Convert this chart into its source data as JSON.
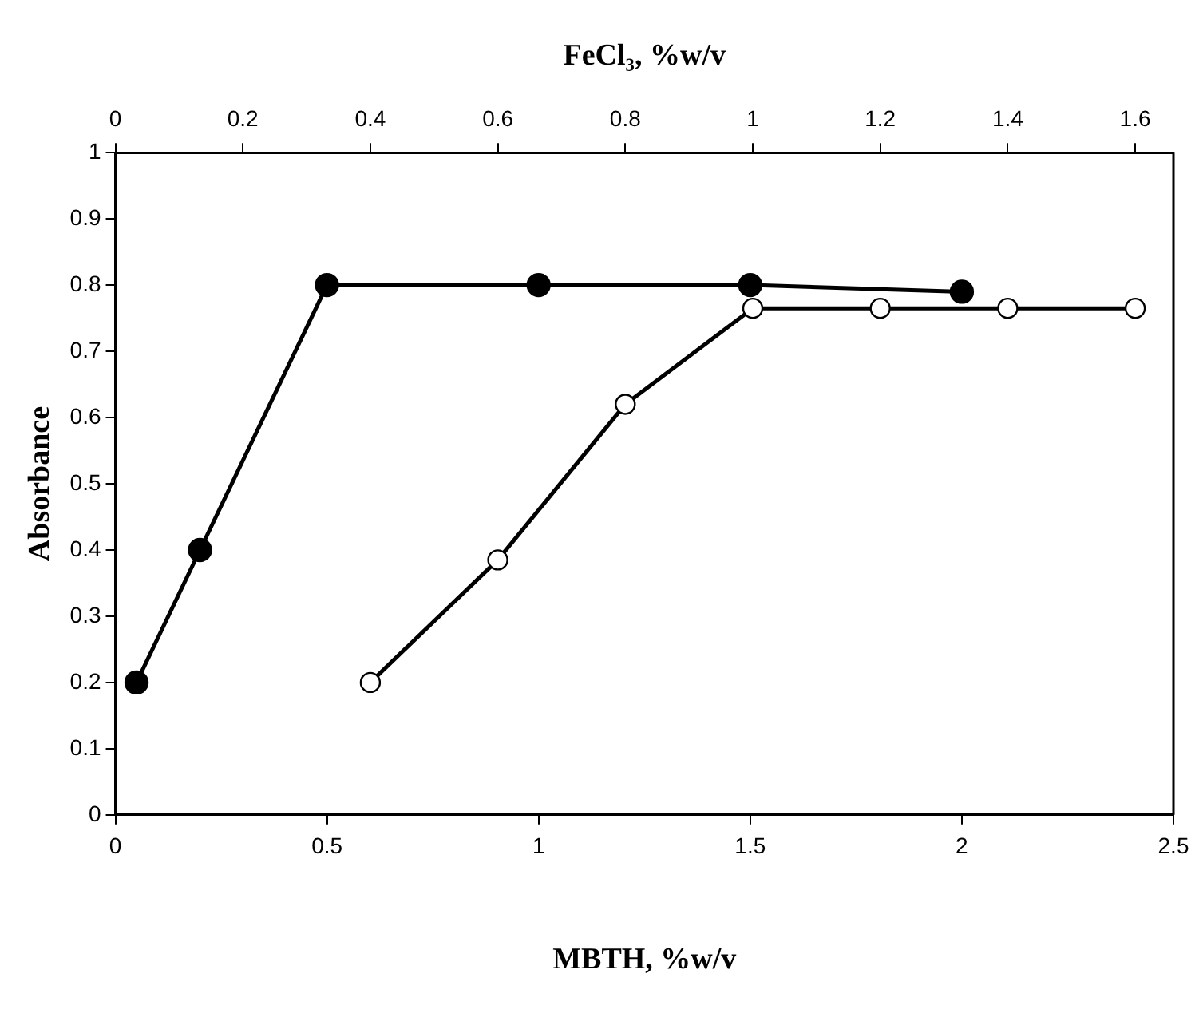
{
  "chart_data": {
    "type": "line",
    "xlabel": "MBTH, %w/v",
    "x2label": "FeCl₃, %w/v",
    "ylabel": "Absorbance",
    "xlim": [
      0,
      2.5
    ],
    "xticks": [
      0,
      0.5,
      1,
      1.5,
      2,
      2.5
    ],
    "x2lim": [
      0,
      1.66
    ],
    "x2ticks": [
      0,
      0.2,
      0.4,
      0.6,
      0.8,
      1,
      1.2,
      1.4,
      1.6
    ],
    "ylim": [
      0,
      1
    ],
    "yticks": [
      0,
      0.1,
      0.2,
      0.3,
      0.4,
      0.5,
      0.6,
      0.7,
      0.8,
      0.9,
      1
    ],
    "grid": false,
    "legend": false,
    "marker": "circle",
    "line_style": "solid",
    "series": [
      {
        "color": "#000000",
        "x": [
          0.05,
          0.2,
          0.5,
          1,
          1.5,
          2
        ],
        "values": [
          0.2,
          0.4,
          0.8,
          0.8,
          0.8,
          0.79
        ]
      },
      {
        "color": "#000000",
        "axis": "x2",
        "x": [
          0.4,
          0.6,
          0.8,
          1,
          1.2,
          1.4,
          1.6
        ],
        "values": [
          0.2,
          0.385,
          0.62,
          0.765,
          0.765,
          0.765,
          0.765
        ]
      }
    ]
  }
}
